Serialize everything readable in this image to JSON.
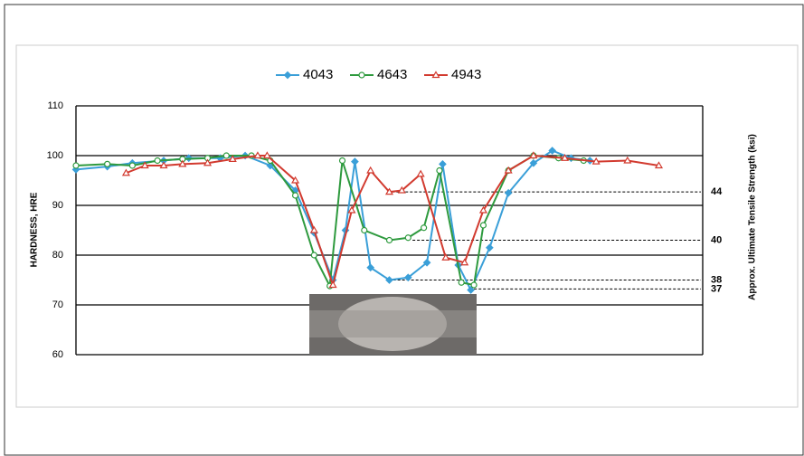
{
  "chart_data": {
    "type": "line",
    "ylabel": "HARDNESS, HRE",
    "y2label": "Approx. Ultimate Tensile Strength (ksi)",
    "xlim": [
      0,
      100
    ],
    "ylim": [
      60,
      110
    ],
    "yticks": [
      60,
      70,
      80,
      90,
      100,
      110
    ],
    "grid": true,
    "legend": "top",
    "series": [
      {
        "name": "4043",
        "color": "#3a9fd8",
        "marker": "diamond",
        "x": [
          0,
          5,
          9,
          14,
          18,
          23,
          27,
          31,
          35,
          38,
          41,
          43,
          44.5,
          47,
          50,
          53,
          56,
          58.5,
          61,
          63,
          66,
          69,
          73,
          76,
          79,
          82
        ],
        "values": [
          97.2,
          97.8,
          98.5,
          99,
          99.5,
          99.5,
          100,
          98,
          93,
          84.5,
          75,
          85,
          98.8,
          77.5,
          75,
          75.5,
          78.5,
          98.3,
          78,
          73,
          81.5,
          92.5,
          98.5,
          101,
          99.5,
          99
        ]
      },
      {
        "name": "4643",
        "color": "#2e9a3e",
        "marker": "circle",
        "x": [
          0,
          5,
          9,
          13,
          17,
          21,
          24,
          28,
          31,
          35,
          38,
          40.5,
          42.5,
          46,
          50,
          53,
          55.5,
          58,
          61.5,
          63.5,
          65,
          69,
          73,
          77,
          81
        ],
        "values": [
          98,
          98.3,
          98,
          99,
          99.3,
          99.5,
          100,
          100,
          99,
          92,
          80,
          73.8,
          99,
          85,
          83,
          83.5,
          85.5,
          97,
          74.5,
          74,
          86,
          97,
          100,
          99.5,
          99
        ]
      },
      {
        "name": "4943",
        "color": "#d23a2f",
        "marker": "triangle",
        "x": [
          8,
          11,
          14,
          17,
          21,
          25,
          29,
          30.5,
          35,
          38,
          41,
          44,
          47,
          50,
          52,
          55,
          59,
          62,
          65,
          69,
          73,
          78,
          83,
          88,
          93
        ],
        "values": [
          96.5,
          98,
          98,
          98.3,
          98.5,
          99.3,
          100,
          100,
          95,
          85,
          74,
          89,
          97,
          92.7,
          93,
          96.3,
          79.5,
          78.5,
          89,
          97,
          100,
          99.5,
          98.8,
          99,
          98
        ]
      }
    ],
    "annotations": [
      {
        "text": "44",
        "x": 50.4,
        "y": 92.7,
        "color": "#d23a2f"
      },
      {
        "text": "40",
        "x": 53.7,
        "y": 83,
        "color": "#2e9a3e"
      },
      {
        "text": "38",
        "x": 50.6,
        "y": 75,
        "color": "#3a9fd8"
      },
      {
        "text": "37",
        "x": 62.8,
        "y": 73.2,
        "color": "#000000"
      }
    ]
  }
}
